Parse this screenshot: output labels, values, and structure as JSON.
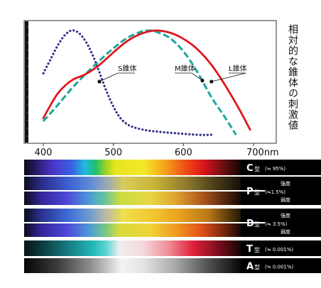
{
  "chart_data": {
    "type": "line",
    "ylabel": "相対的な錐体の刺激値",
    "x_ticks": [
      {
        "value": 400,
        "label": "400"
      },
      {
        "value": 500,
        "label": "500"
      },
      {
        "value": 600,
        "label": "600"
      },
      {
        "value": 700,
        "label": "700nm"
      }
    ],
    "xlim": [
      378,
      720
    ],
    "ylim": [
      0,
      1
    ],
    "grid": false,
    "series": [
      {
        "name": "S錐体",
        "color": "#2f2f8a",
        "style": "dotted",
        "label_point": [
          480,
          0.51
        ],
        "points": [
          [
            400,
            0.59
          ],
          [
            410,
            0.72
          ],
          [
            420,
            0.85
          ],
          [
            430,
            0.95
          ],
          [
            440,
            1.0
          ],
          [
            450,
            0.98
          ],
          [
            460,
            0.9
          ],
          [
            470,
            0.77
          ],
          [
            480,
            0.6
          ],
          [
            490,
            0.42
          ],
          [
            500,
            0.27
          ],
          [
            510,
            0.16
          ],
          [
            520,
            0.1
          ],
          [
            530,
            0.07
          ],
          [
            550,
            0.04
          ],
          [
            580,
            0.02
          ],
          [
            620,
            0.0
          ],
          [
            640,
            0.0
          ]
        ]
      },
      {
        "name": "M錐体",
        "color": "#1aa79a",
        "style": "dashed",
        "label_point": [
          627,
          0.52
        ],
        "points": [
          [
            400,
            0.13
          ],
          [
            420,
            0.28
          ],
          [
            440,
            0.44
          ],
          [
            460,
            0.58
          ],
          [
            480,
            0.71
          ],
          [
            500,
            0.83
          ],
          [
            520,
            0.93
          ],
          [
            540,
            0.99
          ],
          [
            550,
            1.0
          ],
          [
            560,
            0.99
          ],
          [
            580,
            0.93
          ],
          [
            600,
            0.8
          ],
          [
            620,
            0.6
          ],
          [
            640,
            0.36
          ],
          [
            660,
            0.16
          ],
          [
            675,
            0.0
          ]
        ]
      },
      {
        "name": "L錐体",
        "color": "#e0161e",
        "style": "solid",
        "label_point": [
          640,
          0.51
        ],
        "points": [
          [
            400,
            0.16
          ],
          [
            420,
            0.39
          ],
          [
            440,
            0.52
          ],
          [
            460,
            0.58
          ],
          [
            480,
            0.67
          ],
          [
            500,
            0.79
          ],
          [
            520,
            0.9
          ],
          [
            540,
            0.97
          ],
          [
            560,
            1.0
          ],
          [
            580,
            0.98
          ],
          [
            600,
            0.92
          ],
          [
            620,
            0.82
          ],
          [
            640,
            0.67
          ],
          [
            660,
            0.47
          ],
          [
            680,
            0.24
          ],
          [
            695,
            0.05
          ]
        ]
      }
    ]
  },
  "bands": [
    {
      "type_label": "C",
      "suffix": "型",
      "note": "(≒ 95%)",
      "kind": "full"
    },
    {
      "type_label": "P",
      "suffix": "型",
      "note": "(≒1.5%)",
      "kind": "p",
      "upper": "強度",
      "lower": "弱度"
    },
    {
      "type_label": "D",
      "suffix": "型",
      "note": "(≒ 3.5%)",
      "kind": "d",
      "upper": "強度",
      "lower": "弱度"
    },
    {
      "type_label": "T",
      "suffix": "型",
      "note": "(≒ 0.001%)",
      "kind": "t"
    },
    {
      "type_label": "A",
      "suffix": "型",
      "note": "(≒ 0.001%)",
      "kind": "a"
    }
  ],
  "colors": {
    "frame": "#333333",
    "band_text": "#ffffff",
    "band_bg": "#000000"
  }
}
